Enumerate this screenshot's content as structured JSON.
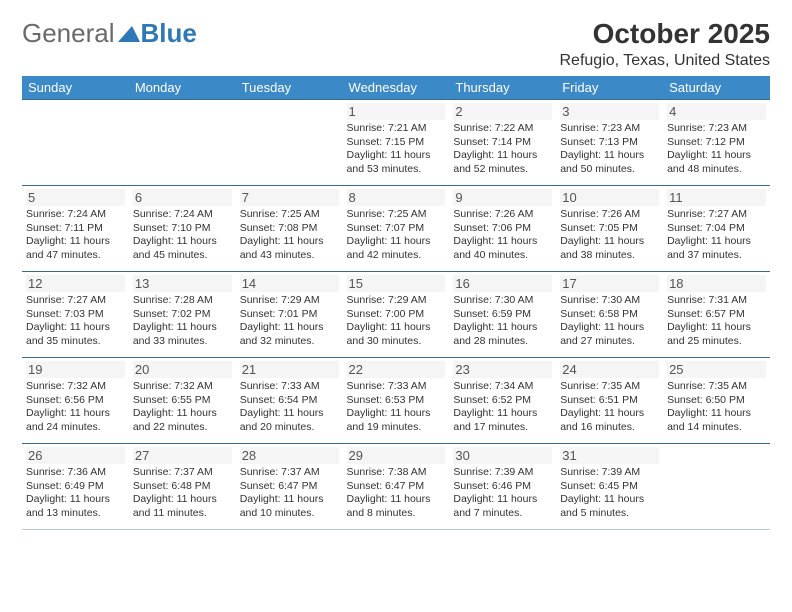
{
  "brand": {
    "general": "General",
    "blue": "Blue"
  },
  "title": "October 2025",
  "location": "Refugio, Texas, United States",
  "style": {
    "header_bg": "#3b89c7",
    "header_fg": "#ffffff",
    "row_border": "#3b6a8f",
    "logo_triangle": "#2f78b7",
    "daynum_bg": "#f5f5f5",
    "page_bg": "#ffffff",
    "text_color": "#333333",
    "title_fontsize": 28,
    "location_fontsize": 16,
    "header_fontsize": 13,
    "daynum_fontsize": 13,
    "info_fontsize": 10.5
  },
  "days": [
    "Sunday",
    "Monday",
    "Tuesday",
    "Wednesday",
    "Thursday",
    "Friday",
    "Saturday"
  ],
  "weeks": [
    [
      null,
      null,
      null,
      {
        "n": "1",
        "sr": "7:21 AM",
        "ss": "7:15 PM",
        "dh": 11,
        "dm": 53
      },
      {
        "n": "2",
        "sr": "7:22 AM",
        "ss": "7:14 PM",
        "dh": 11,
        "dm": 52
      },
      {
        "n": "3",
        "sr": "7:23 AM",
        "ss": "7:13 PM",
        "dh": 11,
        "dm": 50
      },
      {
        "n": "4",
        "sr": "7:23 AM",
        "ss": "7:12 PM",
        "dh": 11,
        "dm": 48
      }
    ],
    [
      {
        "n": "5",
        "sr": "7:24 AM",
        "ss": "7:11 PM",
        "dh": 11,
        "dm": 47
      },
      {
        "n": "6",
        "sr": "7:24 AM",
        "ss": "7:10 PM",
        "dh": 11,
        "dm": 45
      },
      {
        "n": "7",
        "sr": "7:25 AM",
        "ss": "7:08 PM",
        "dh": 11,
        "dm": 43
      },
      {
        "n": "8",
        "sr": "7:25 AM",
        "ss": "7:07 PM",
        "dh": 11,
        "dm": 42
      },
      {
        "n": "9",
        "sr": "7:26 AM",
        "ss": "7:06 PM",
        "dh": 11,
        "dm": 40
      },
      {
        "n": "10",
        "sr": "7:26 AM",
        "ss": "7:05 PM",
        "dh": 11,
        "dm": 38
      },
      {
        "n": "11",
        "sr": "7:27 AM",
        "ss": "7:04 PM",
        "dh": 11,
        "dm": 37
      }
    ],
    [
      {
        "n": "12",
        "sr": "7:27 AM",
        "ss": "7:03 PM",
        "dh": 11,
        "dm": 35
      },
      {
        "n": "13",
        "sr": "7:28 AM",
        "ss": "7:02 PM",
        "dh": 11,
        "dm": 33
      },
      {
        "n": "14",
        "sr": "7:29 AM",
        "ss": "7:01 PM",
        "dh": 11,
        "dm": 32
      },
      {
        "n": "15",
        "sr": "7:29 AM",
        "ss": "7:00 PM",
        "dh": 11,
        "dm": 30
      },
      {
        "n": "16",
        "sr": "7:30 AM",
        "ss": "6:59 PM",
        "dh": 11,
        "dm": 28
      },
      {
        "n": "17",
        "sr": "7:30 AM",
        "ss": "6:58 PM",
        "dh": 11,
        "dm": 27
      },
      {
        "n": "18",
        "sr": "7:31 AM",
        "ss": "6:57 PM",
        "dh": 11,
        "dm": 25
      }
    ],
    [
      {
        "n": "19",
        "sr": "7:32 AM",
        "ss": "6:56 PM",
        "dh": 11,
        "dm": 24
      },
      {
        "n": "20",
        "sr": "7:32 AM",
        "ss": "6:55 PM",
        "dh": 11,
        "dm": 22
      },
      {
        "n": "21",
        "sr": "7:33 AM",
        "ss": "6:54 PM",
        "dh": 11,
        "dm": 20
      },
      {
        "n": "22",
        "sr": "7:33 AM",
        "ss": "6:53 PM",
        "dh": 11,
        "dm": 19
      },
      {
        "n": "23",
        "sr": "7:34 AM",
        "ss": "6:52 PM",
        "dh": 11,
        "dm": 17
      },
      {
        "n": "24",
        "sr": "7:35 AM",
        "ss": "6:51 PM",
        "dh": 11,
        "dm": 16
      },
      {
        "n": "25",
        "sr": "7:35 AM",
        "ss": "6:50 PM",
        "dh": 11,
        "dm": 14
      }
    ],
    [
      {
        "n": "26",
        "sr": "7:36 AM",
        "ss": "6:49 PM",
        "dh": 11,
        "dm": 13
      },
      {
        "n": "27",
        "sr": "7:37 AM",
        "ss": "6:48 PM",
        "dh": 11,
        "dm": 11
      },
      {
        "n": "28",
        "sr": "7:37 AM",
        "ss": "6:47 PM",
        "dh": 11,
        "dm": 10
      },
      {
        "n": "29",
        "sr": "7:38 AM",
        "ss": "6:47 PM",
        "dh": 11,
        "dm": 8
      },
      {
        "n": "30",
        "sr": "7:39 AM",
        "ss": "6:46 PM",
        "dh": 11,
        "dm": 7
      },
      {
        "n": "31",
        "sr": "7:39 AM",
        "ss": "6:45 PM",
        "dh": 11,
        "dm": 5
      },
      null
    ]
  ]
}
